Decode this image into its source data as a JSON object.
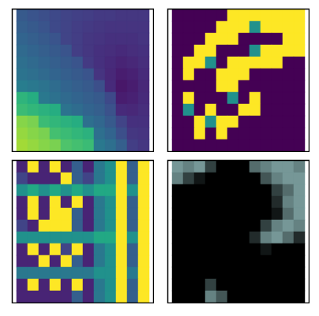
{
  "chart_data": [
    {
      "type": "heatmap",
      "color": "viridis",
      "tick_labels": false,
      "value_range": [
        0,
        1
      ],
      "cells": [
        [
          0.28,
          0.26,
          0.24,
          0.22,
          0.2,
          0.19,
          0.18,
          0.17,
          0.17,
          0.16,
          0.16,
          0.16
        ],
        [
          0.3,
          0.28,
          0.26,
          0.22,
          0.2,
          0.18,
          0.17,
          0.16,
          0.15,
          0.15,
          0.15,
          0.15
        ],
        [
          0.32,
          0.3,
          0.28,
          0.26,
          0.2,
          0.18,
          0.16,
          0.15,
          0.14,
          0.14,
          0.14,
          0.15
        ],
        [
          0.34,
          0.32,
          0.3,
          0.28,
          0.26,
          0.18,
          0.16,
          0.14,
          0.13,
          0.12,
          0.13,
          0.14
        ],
        [
          0.36,
          0.34,
          0.32,
          0.3,
          0.28,
          0.26,
          0.17,
          0.14,
          0.12,
          0.1,
          0.11,
          0.13
        ],
        [
          0.38,
          0.36,
          0.34,
          0.32,
          0.3,
          0.28,
          0.26,
          0.15,
          0.11,
          0.08,
          0.09,
          0.12
        ],
        [
          0.42,
          0.4,
          0.38,
          0.35,
          0.32,
          0.3,
          0.28,
          0.24,
          0.12,
          0.06,
          0.08,
          0.11
        ],
        [
          0.65,
          0.62,
          0.4,
          0.37,
          0.34,
          0.32,
          0.3,
          0.28,
          0.22,
          0.08,
          0.09,
          0.12
        ],
        [
          0.68,
          0.66,
          0.64,
          0.62,
          0.38,
          0.35,
          0.32,
          0.3,
          0.25,
          0.12,
          0.11,
          0.13
        ],
        [
          0.82,
          0.8,
          0.68,
          0.66,
          0.64,
          0.62,
          0.36,
          0.33,
          0.28,
          0.2,
          0.14,
          0.14
        ],
        [
          0.84,
          0.82,
          0.8,
          0.7,
          0.68,
          0.66,
          0.64,
          0.36,
          0.32,
          0.24,
          0.16,
          0.15
        ],
        [
          0.86,
          0.84,
          0.82,
          0.8,
          0.72,
          0.7,
          0.68,
          0.4,
          0.36,
          0.3,
          0.18,
          0.16
        ]
      ]
    },
    {
      "type": "heatmap",
      "color": "viridis",
      "tick_labels": false,
      "value_range": [
        0,
        1
      ],
      "cells": [
        [
          0,
          0,
          0,
          0,
          0,
          1,
          1,
          1,
          1,
          1,
          1,
          1
        ],
        [
          0,
          0,
          0,
          0,
          1,
          1,
          1,
          0.5,
          1,
          1,
          1,
          1
        ],
        [
          0,
          0,
          0,
          1,
          1,
          1,
          0,
          0,
          0,
          0,
          1,
          1
        ],
        [
          0,
          0,
          1,
          1,
          0,
          0,
          0,
          0.5,
          1,
          1,
          1,
          1
        ],
        [
          0,
          1,
          1,
          0.5,
          0,
          1,
          1,
          1,
          1,
          1,
          0,
          0
        ],
        [
          0,
          1,
          0,
          0,
          1,
          1,
          1,
          0,
          0,
          0,
          0,
          0
        ],
        [
          0,
          0,
          0,
          0,
          1,
          1,
          0,
          0,
          0,
          0,
          0,
          0
        ],
        [
          0,
          1,
          0,
          0,
          0,
          0.5,
          0,
          1,
          0,
          0,
          0,
          0
        ],
        [
          0,
          0.5,
          0,
          1,
          0,
          0,
          1,
          1,
          0,
          0,
          0,
          0
        ],
        [
          0,
          0,
          1,
          0.5,
          1,
          1,
          0,
          0,
          0,
          0,
          0,
          0
        ],
        [
          0,
          0,
          1,
          0,
          1,
          0,
          0,
          0,
          0,
          0,
          0,
          0
        ],
        [
          0,
          0,
          0,
          0,
          0,
          0,
          0,
          0,
          0,
          0,
          0,
          0
        ]
      ]
    },
    {
      "type": "heatmap",
      "color": "viridis",
      "tick_labels": false,
      "value_range": [
        0,
        1
      ],
      "cells": [
        [
          0.1,
          1,
          0.1,
          1,
          0.1,
          0.3,
          0.1,
          0.4,
          0.5,
          1,
          0.3,
          1
        ],
        [
          0.2,
          0.1,
          0.1,
          0.1,
          1,
          0.3,
          0.2,
          0.4,
          0.5,
          1,
          0.3,
          1
        ],
        [
          0.5,
          0.6,
          0.5,
          0.6,
          0.5,
          0.6,
          0.5,
          0.6,
          0.6,
          1,
          0.5,
          1
        ],
        [
          0.1,
          1,
          0.1,
          1,
          0.1,
          1,
          0.1,
          0.4,
          0.5,
          1,
          0.3,
          1
        ],
        [
          0.1,
          1,
          0.1,
          1,
          1,
          0.3,
          0.1,
          0.4,
          0.5,
          1,
          0.3,
          1
        ],
        [
          0.2,
          0.1,
          1,
          1,
          1,
          0.3,
          0.1,
          0.4,
          0.5,
          1,
          0.3,
          1
        ],
        [
          0.5,
          0.5,
          0.5,
          0.5,
          0.5,
          0.5,
          0.5,
          0.6,
          0.6,
          1,
          0.5,
          1
        ],
        [
          0.1,
          1,
          0.1,
          1,
          0.2,
          1,
          0.1,
          0.4,
          0.5,
          1,
          0.3,
          1
        ],
        [
          0.1,
          0.1,
          1,
          0.1,
          1,
          0.3,
          0.1,
          0.4,
          0.5,
          1,
          0.3,
          1
        ],
        [
          0.4,
          0.4,
          0.4,
          0.4,
          0.4,
          0.4,
          0.4,
          0.5,
          0.5,
          1,
          0.4,
          1
        ],
        [
          0.1,
          1,
          0.1,
          1,
          0.1,
          1,
          0.1,
          0.4,
          0.5,
          1,
          0.3,
          1
        ],
        [
          0.1,
          0.1,
          0.1,
          0.1,
          0.1,
          0.3,
          0.1,
          0.4,
          0.5,
          1,
          0.3,
          1
        ]
      ]
    },
    {
      "type": "heatmap",
      "color": "#a8d8d8",
      "tick_labels": false,
      "value_range": [
        0,
        1
      ],
      "cells": [
        [
          0.7,
          0.6,
          0.7,
          0.3,
          0,
          0,
          0,
          0.5,
          0.6,
          0.7,
          0.7,
          0.6
        ],
        [
          0.6,
          0.3,
          0.1,
          0,
          0,
          0,
          0,
          0,
          0.4,
          0.6,
          0.7,
          0.7
        ],
        [
          0,
          0,
          0,
          0,
          0,
          0,
          0,
          0,
          0,
          0.3,
          0.5,
          0.7
        ],
        [
          0,
          0,
          0,
          0,
          0,
          0,
          0,
          0,
          0,
          0.2,
          0.6,
          0.7
        ],
        [
          0,
          0,
          0,
          0,
          0,
          0,
          0,
          0,
          0,
          0.1,
          0.5,
          0.7
        ],
        [
          0,
          0,
          0,
          0,
          0,
          0,
          0,
          0,
          0.3,
          0.6,
          0.7,
          0.6
        ],
        [
          0,
          0,
          0,
          0,
          0,
          0,
          0,
          0.2,
          0.6,
          0.7,
          0.5,
          0.2
        ],
        [
          0,
          0,
          0,
          0,
          0,
          0,
          0,
          0,
          0.1,
          0,
          0,
          0
        ],
        [
          0,
          0,
          0,
          0,
          0,
          0,
          0,
          0,
          0,
          0,
          0,
          0
        ],
        [
          0,
          0,
          0,
          0,
          0,
          0,
          0,
          0,
          0,
          0,
          0,
          0
        ],
        [
          0,
          0,
          0,
          0.3,
          0,
          0,
          0,
          0,
          0,
          0,
          0,
          0
        ],
        [
          0,
          0,
          0,
          0.6,
          0.4,
          0,
          0,
          0,
          0,
          0,
          0,
          0
        ]
      ]
    }
  ]
}
